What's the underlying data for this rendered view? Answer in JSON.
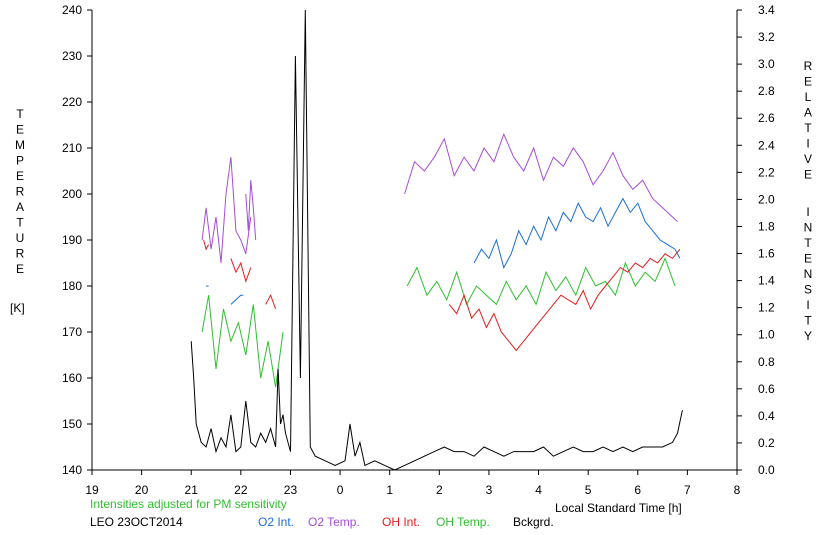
{
  "chart_data": {
    "type": "line",
    "x_axis": {
      "label": "Local Standard Time [h]",
      "range": [
        19,
        32
      ],
      "tick_values": [
        19,
        20,
        21,
        22,
        23,
        24,
        25,
        26,
        27,
        28,
        29,
        30,
        31,
        32
      ],
      "tick_labels": [
        "19",
        "20",
        "21",
        "22",
        "23",
        "0",
        "1",
        "2",
        "3",
        "4",
        "5",
        "6",
        "7",
        "8"
      ]
    },
    "y_left": {
      "label": "TEMPERATURE [K]",
      "label_letters": [
        "T",
        "E",
        "M",
        "P",
        "E",
        "R",
        "A",
        "T",
        "U",
        "R",
        "E"
      ],
      "unit": "[K]",
      "range": [
        140,
        240
      ],
      "ticks": [
        140,
        150,
        160,
        170,
        180,
        190,
        200,
        210,
        220,
        230,
        240
      ]
    },
    "y_right": {
      "label": "RELATIVE INTENSITY",
      "label_word1": [
        "R",
        "E",
        "L",
        "A",
        "T",
        "I",
        "V",
        "E"
      ],
      "label_word2": [
        "I",
        "N",
        "T",
        "E",
        "N",
        "S",
        "I",
        "T",
        "Y"
      ],
      "range": [
        0,
        3.4
      ],
      "ticks": [
        "0.0",
        "0.2",
        "0.4",
        "0.6",
        "0.8",
        "1.0",
        "1.2",
        "1.4",
        "1.6",
        "1.8",
        "2.0",
        "2.2",
        "2.4",
        "2.6",
        "2.8",
        "3.0",
        "3.2",
        "3.4"
      ]
    },
    "note": "Intensities adjusted for PM sensitivity",
    "station": "LEO 23OCT2014",
    "legend": [
      {
        "label": "O2 Int.",
        "color": "#1a6ed8"
      },
      {
        "label": "O2 Temp.",
        "color": "#a64dd6"
      },
      {
        "label": "OH Int.",
        "color": "#e01e1e"
      },
      {
        "label": "OH Temp.",
        "color": "#2fbf2f"
      },
      {
        "label": "Bckgrd.",
        "color": "#000000"
      }
    ],
    "series": [
      {
        "name": "O2 Temp.",
        "color": "#a64dd6",
        "segments": [
          {
            "x": [
              21.22,
              21.3,
              21.4,
              21.5,
              21.6,
              21.7,
              21.8,
              21.9,
              22.0,
              22.1,
              22.2
            ],
            "y": [
              190,
              197,
              188,
              195,
              185,
              200,
              208,
              192,
              190,
              187,
              195
            ]
          },
          {
            "x": [
              22.1,
              22.15,
              22.2,
              22.25,
              22.3
            ],
            "y": [
              200,
              192,
              203,
              197,
              190
            ]
          },
          {
            "x": [
              25.3,
              25.5,
              25.7,
              25.9,
              26.1,
              26.3,
              26.5,
              26.7,
              26.9,
              27.1,
              27.3,
              27.5,
              27.7,
              27.9,
              28.1,
              28.3,
              28.5,
              28.7,
              28.9,
              29.1,
              29.3,
              29.5,
              29.7,
              29.9,
              30.1,
              30.3,
              30.5,
              30.7,
              30.8
            ],
            "y": [
              200,
              207,
              205,
              208,
              212,
              204,
              208,
              205,
              210,
              207,
              213,
              208,
              205,
              210,
              203,
              208,
              206,
              210,
              207,
              202,
              205,
              209,
              204,
              201,
              203,
              199,
              197,
              195,
              194
            ]
          }
        ]
      },
      {
        "name": "OH Temp.",
        "color": "#2fbf2f",
        "segments": [
          {
            "x": [
              21.22,
              21.35,
              21.5,
              21.65,
              21.8,
              21.95,
              22.1,
              22.25,
              22.4,
              22.55,
              22.7,
              22.85
            ],
            "y": [
              170,
              178,
              162,
              175,
              168,
              172,
              165,
              176,
              160,
              168,
              158,
              170
            ]
          },
          {
            "x": [
              25.35,
              25.55,
              25.75,
              25.95,
              26.15,
              26.35,
              26.55,
              26.75,
              26.95,
              27.15,
              27.35,
              27.55,
              27.75,
              27.95,
              28.15,
              28.35,
              28.55,
              28.75,
              28.95,
              29.15,
              29.35,
              29.55,
              29.75,
              29.95,
              30.15,
              30.35,
              30.55,
              30.75
            ],
            "y": [
              180,
              184,
              178,
              181,
              177,
              183,
              176,
              180,
              178,
              176,
              181,
              177,
              180,
              176,
              183,
              179,
              182,
              178,
              184,
              180,
              181,
              178,
              185,
              180,
              183,
              181,
              186,
              180
            ]
          }
        ]
      },
      {
        "name": "O2 Int.",
        "color": "#1a6ed8",
        "segments": [
          {
            "x": [
              21.3,
              21.35
            ],
            "y": [
              180,
              180
            ]
          },
          {
            "x": [
              21.8,
              21.9,
              22.0,
              22.05
            ],
            "y": [
              176,
              177,
              178,
              178
            ]
          },
          {
            "x": [
              26.7,
              26.85,
              27.0,
              27.15,
              27.3,
              27.45,
              27.6,
              27.75,
              27.9,
              28.05,
              28.2,
              28.35,
              28.5,
              28.65,
              28.8,
              28.95,
              29.1,
              29.25,
              29.4,
              29.55,
              29.7,
              29.85,
              30.0,
              30.15,
              30.3,
              30.45,
              30.6,
              30.75,
              30.85
            ],
            "y": [
              185,
              188,
              186,
              190,
              184,
              187,
              192,
              189,
              193,
              190,
              195,
              192,
              196,
              194,
              198,
              195,
              194,
              197,
              193,
              196,
              199,
              196,
              198,
              194,
              192,
              190,
              189,
              188,
              186
            ]
          }
        ]
      },
      {
        "name": "OH Int.",
        "color": "#e01e1e",
        "segments": [
          {
            "x": [
              21.25,
              21.3,
              21.35
            ],
            "y": [
              190,
              188,
              189
            ]
          },
          {
            "x": [
              21.8,
              21.9,
              22.0,
              22.1,
              22.2
            ],
            "y": [
              186,
              183,
              185,
              181,
              184
            ]
          },
          {
            "x": [
              22.5,
              22.6,
              22.7
            ],
            "y": [
              176,
              178,
              175
            ]
          },
          {
            "x": [
              26.2,
              26.35,
              26.5,
              26.65,
              26.8,
              26.95,
              27.1,
              27.25,
              27.4,
              27.55,
              27.7,
              27.85,
              28.0,
              28.15,
              28.3,
              28.45,
              28.6,
              28.75,
              28.9,
              29.05,
              29.2,
              29.35,
              29.5,
              29.65,
              29.8,
              29.95,
              30.1,
              30.25,
              30.4,
              30.55,
              30.7,
              30.85
            ],
            "y": [
              176,
              174,
              178,
              173,
              175,
              171,
              174,
              170,
              168,
              166,
              168,
              170,
              172,
              174,
              176,
              178,
              177,
              176,
              179,
              175,
              178,
              180,
              182,
              184,
              183,
              185,
              184,
              186,
              185,
              187,
              186,
              188
            ]
          }
        ]
      },
      {
        "name": "Bckgrd.",
        "color": "#000000",
        "segments": [
          {
            "x": [
              21.0,
              21.05,
              21.1,
              21.2,
              21.3,
              21.4,
              21.5,
              21.6,
              21.7,
              21.8,
              21.9,
              22.0,
              22.1,
              22.2,
              22.3,
              22.4,
              22.5,
              22.6,
              22.7,
              22.75,
              22.8,
              22.85,
              22.9,
              23.0,
              23.1,
              23.2,
              23.3,
              23.4,
              23.5,
              23.7,
              23.9,
              24.1,
              24.2,
              24.3,
              24.4,
              24.5,
              24.7,
              24.9,
              25.1,
              25.3,
              25.5,
              25.7,
              25.9,
              26.1,
              26.3,
              26.5,
              26.7,
              26.9,
              27.1,
              27.3,
              27.5,
              27.7,
              27.9,
              28.1,
              28.3,
              28.5,
              28.7,
              28.9,
              29.1,
              29.3,
              29.5,
              29.7,
              29.9,
              30.1,
              30.3,
              30.5,
              30.7,
              30.8,
              30.9
            ],
            "y": [
              168,
              160,
              150,
              146,
              145,
              149,
              144,
              147,
              145,
              152,
              144,
              145,
              155,
              146,
              145,
              148,
              146,
              149,
              145,
              162,
              150,
              152,
              148,
              144,
              230,
              160,
              240,
              145,
              143,
              142,
              141,
              142,
              150,
              143,
              146,
              141,
              142,
              141,
              140,
              141,
              142,
              143,
              144,
              145,
              144,
              144,
              143,
              145,
              144,
              143,
              144,
              144,
              144,
              145,
              143,
              144,
              145,
              144,
              144,
              145,
              144,
              145,
              144,
              145,
              145,
              145,
              146,
              148,
              153
            ]
          }
        ]
      }
    ]
  }
}
